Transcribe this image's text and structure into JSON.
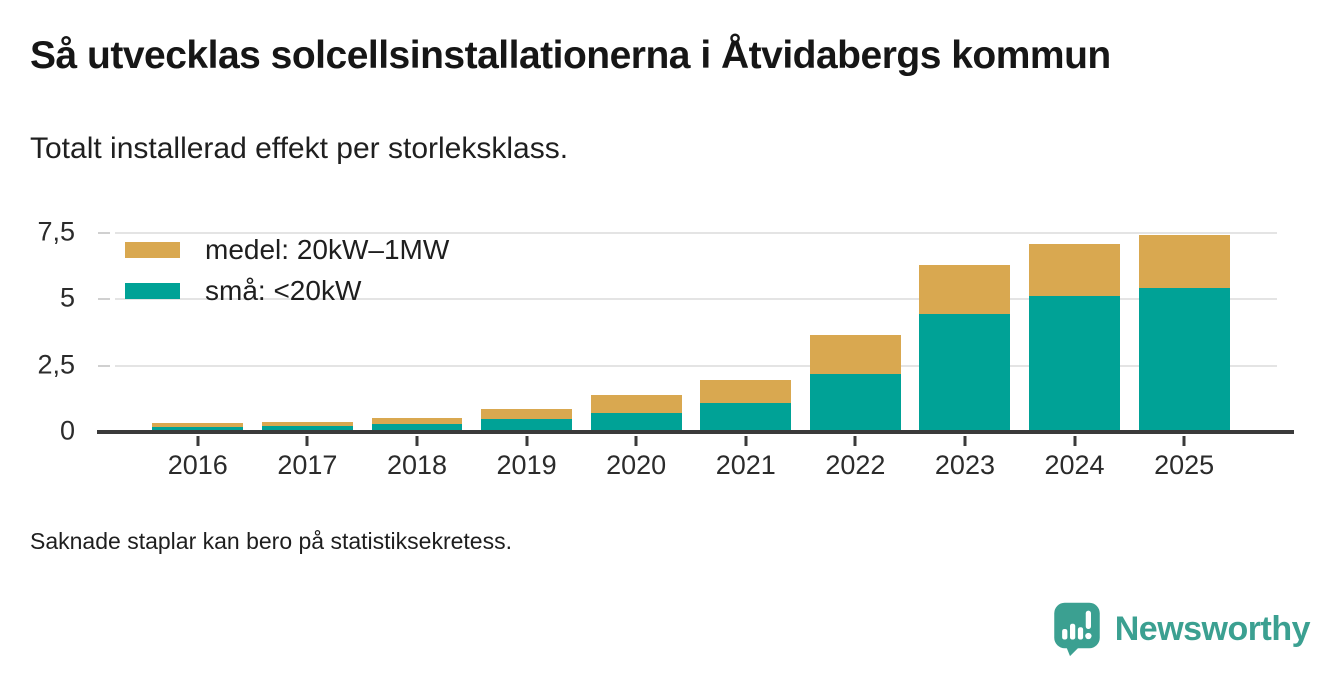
{
  "header": {
    "title": "Så utvecklas solcellsinstallationerna i Åtvidabergs kommun",
    "subtitle": "Totalt installerad effekt per storleksklass."
  },
  "chart_data": {
    "type": "bar",
    "stacked": true,
    "title": "Totalt installerad effekt per storleksklass",
    "categories": [
      "2016",
      "2017",
      "2018",
      "2019",
      "2020",
      "2021",
      "2022",
      "2023",
      "2024",
      "2025"
    ],
    "series": [
      {
        "name": "medel: 20kW–1MW",
        "color": "#d9a850",
        "values": [
          0.15,
          0.16,
          0.21,
          0.36,
          0.71,
          0.86,
          1.48,
          1.86,
          1.96,
          2.01
        ]
      },
      {
        "name": "små: <20kW",
        "color": "#00a296",
        "values": [
          0.18,
          0.22,
          0.3,
          0.5,
          0.7,
          1.09,
          2.19,
          4.43,
          5.12,
          5.41
        ]
      }
    ],
    "ylim": [
      0,
      7.5
    ],
    "yticks": [
      {
        "value": 0,
        "label": "0"
      },
      {
        "value": 2.5,
        "label": "2,5"
      },
      {
        "value": 5,
        "label": "5"
      },
      {
        "value": 7.5,
        "label": "7,5"
      }
    ],
    "grid": true,
    "legend_position": "top-left-inside",
    "xlabel": "",
    "ylabel": ""
  },
  "footer": {
    "note": "Saknade staplar kan bero på statistiksekretess."
  },
  "branding": {
    "name": "Newsworthy",
    "color": "#3ba091"
  }
}
